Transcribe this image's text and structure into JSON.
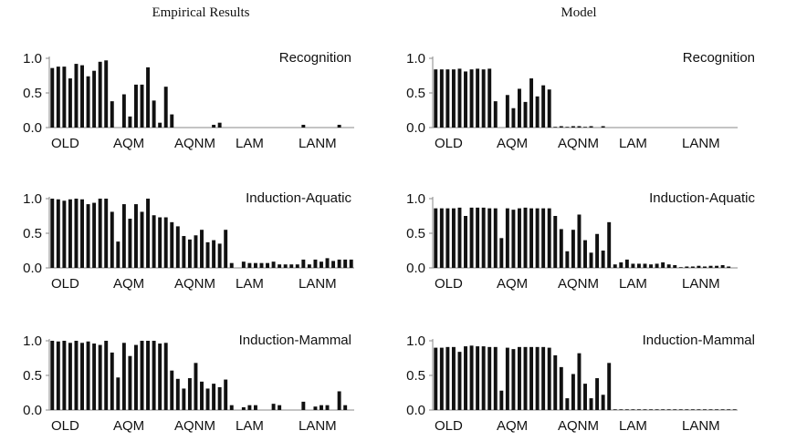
{
  "columns": {
    "left_title": "Empirical Results",
    "right_title": "Model"
  },
  "colors": {
    "bar": "#111111",
    "axis": "#888888"
  },
  "chart_data": [
    {
      "type": "bar",
      "title": "Recognition",
      "column": "Empirical Results",
      "ylim": [
        0,
        1
      ],
      "yticks": [
        "1.0",
        "0.5",
        "0.0"
      ],
      "group_labels": [
        "OLD",
        "AQM",
        "AQNM",
        "LAM",
        "LANM"
      ],
      "values": [
        0.86,
        0.88,
        0.88,
        0.71,
        0.92,
        0.9,
        0.74,
        0.82,
        0.95,
        0.97,
        0.38,
        0,
        0.48,
        0.16,
        0.62,
        0.62,
        0.87,
        0.39,
        0.07,
        0.59,
        0.19,
        0,
        0,
        0,
        0,
        0,
        0,
        0.04,
        0.07,
        0,
        0,
        0,
        0,
        0,
        0,
        0,
        0,
        0,
        0,
        0,
        0,
        0,
        0.04,
        0,
        0,
        0,
        0,
        0,
        0.04,
        0,
        0
      ]
    },
    {
      "type": "bar",
      "title": "Recognition",
      "column": "Model",
      "ylim": [
        0,
        1
      ],
      "yticks": [
        "1.0",
        "0.5",
        "0.0"
      ],
      "group_labels": [
        "OLD",
        "AQM",
        "AQNM",
        "LAM",
        "LANM"
      ],
      "values": [
        0.84,
        0.84,
        0.84,
        0.84,
        0.85,
        0.81,
        0.84,
        0.85,
        0.84,
        0.85,
        0.38,
        0,
        0.47,
        0.28,
        0.56,
        0.37,
        0.71,
        0.45,
        0.61,
        0.55,
        0.01,
        0.02,
        0.01,
        0.02,
        0.02,
        0.01,
        0.02,
        0,
        0.02,
        0,
        0,
        0,
        0,
        0,
        0,
        0,
        0,
        0,
        0,
        0,
        0,
        0,
        0,
        0,
        0,
        0,
        0,
        0,
        0,
        0,
        0
      ]
    },
    {
      "type": "bar",
      "title": "Induction-Aquatic",
      "column": "Empirical Results",
      "ylim": [
        0,
        1
      ],
      "yticks": [
        "1.0",
        "0.5",
        "0.0"
      ],
      "group_labels": [
        "OLD",
        "AQM",
        "AQNM",
        "LAM",
        "LANM"
      ],
      "values": [
        1.0,
        0.99,
        0.97,
        0.99,
        1.0,
        0.99,
        0.92,
        0.94,
        1.0,
        1.0,
        0.81,
        0.38,
        0.92,
        0.71,
        0.92,
        0.81,
        1.0,
        0.76,
        0.73,
        0.73,
        0.66,
        0.6,
        0.46,
        0.41,
        0.47,
        0.55,
        0.37,
        0.4,
        0.35,
        0.55,
        0.07,
        0,
        0.09,
        0.07,
        0.07,
        0.07,
        0.07,
        0.09,
        0.05,
        0.05,
        0.05,
        0.05,
        0.12,
        0.05,
        0.12,
        0.09,
        0.14,
        0.1,
        0.12,
        0.12,
        0.12
      ]
    },
    {
      "type": "bar",
      "title": "Induction-Aquatic",
      "column": "Model",
      "ylim": [
        0,
        1
      ],
      "yticks": [
        "1.0",
        "0.5",
        "0.0"
      ],
      "group_labels": [
        "OLD",
        "AQM",
        "AQNM",
        "LAM",
        "LANM"
      ],
      "values": [
        0.86,
        0.86,
        0.86,
        0.86,
        0.87,
        0.75,
        0.87,
        0.87,
        0.87,
        0.86,
        0.86,
        0.43,
        0.86,
        0.84,
        0.86,
        0.87,
        0.86,
        0.86,
        0.86,
        0.86,
        0.75,
        0.56,
        0.24,
        0.55,
        0.77,
        0.4,
        0.22,
        0.49,
        0.25,
        0.66,
        0.05,
        0.08,
        0.12,
        0.06,
        0.06,
        0.06,
        0.05,
        0.06,
        0.08,
        0.05,
        0.04,
        0.01,
        0.02,
        0.02,
        0.03,
        0.02,
        0.03,
        0.03,
        0.04,
        0.02,
        0
      ]
    },
    {
      "type": "bar",
      "title": "Induction-Mammal",
      "column": "Empirical Results",
      "ylim": [
        0,
        1
      ],
      "yticks": [
        "1.0",
        "0.5",
        "0.0"
      ],
      "group_labels": [
        "OLD",
        "AQM",
        "AQNM",
        "LAM",
        "LANM"
      ],
      "values": [
        1.0,
        0.99,
        1.0,
        0.97,
        1.0,
        0.97,
        0.99,
        0.96,
        0.94,
        1.0,
        0.83,
        0.47,
        0.97,
        0.78,
        0.94,
        1.0,
        1.0,
        1.0,
        0.96,
        0.97,
        0.57,
        0.45,
        0.31,
        0.46,
        0.68,
        0.41,
        0.31,
        0.38,
        0.33,
        0.44,
        0.07,
        0,
        0.04,
        0.07,
        0.07,
        0,
        0,
        0.09,
        0.07,
        0,
        0,
        0,
        0.12,
        0,
        0.05,
        0.07,
        0.07,
        0,
        0.27,
        0.07,
        0
      ]
    },
    {
      "type": "bar",
      "title": "Induction-Mammal",
      "column": "Model",
      "ylim": [
        0,
        1
      ],
      "yticks": [
        "1.0",
        "0.5",
        "0.0"
      ],
      "group_labels": [
        "OLD",
        "AQM",
        "AQNM",
        "LAM",
        "LANM"
      ],
      "values": [
        0.9,
        0.9,
        0.91,
        0.91,
        0.84,
        0.92,
        0.93,
        0.92,
        0.92,
        0.91,
        0.91,
        0.28,
        0.9,
        0.88,
        0.91,
        0.91,
        0.91,
        0.91,
        0.91,
        0.9,
        0.79,
        0.62,
        0.17,
        0.52,
        0.82,
        0.38,
        0.17,
        0.46,
        0.22,
        0.68,
        0.01,
        0.01,
        0.01,
        0.01,
        0.01,
        0.01,
        0.01,
        0.01,
        0.01,
        0.01,
        0.01,
        0.01,
        0.01,
        0.01,
        0.01,
        0.01,
        0.01,
        0.01,
        0.01,
        0.01,
        0.01
      ]
    }
  ]
}
